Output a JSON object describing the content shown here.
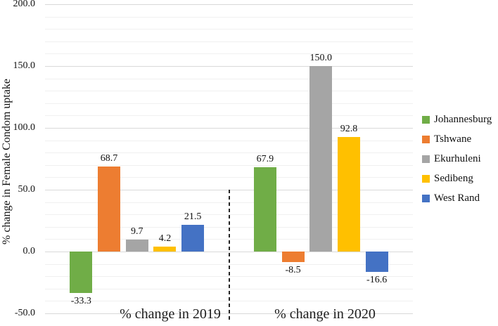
{
  "chart_data": {
    "type": "bar",
    "ylabel": "% change in Female Condom uptake",
    "groups": [
      "% change in 2019",
      "% change in 2020"
    ],
    "series": [
      {
        "name": "Johannesburg",
        "color": "#70AD47",
        "values": [
          -33.3,
          67.9
        ]
      },
      {
        "name": "Tshwane",
        "color": "#ED7D31",
        "values": [
          68.7,
          -8.5
        ]
      },
      {
        "name": "Ekurhuleni",
        "color": "#A5A5A5",
        "values": [
          9.7,
          150.0
        ]
      },
      {
        "name": "Sedibeng",
        "color": "#FFC000",
        "values": [
          4.2,
          92.8
        ]
      },
      {
        "name": "West Rand",
        "color": "#4472C4",
        "values": [
          21.5,
          -16.6
        ]
      }
    ],
    "ylim": [
      -50,
      200
    ],
    "ytick_labels": [
      "200.0",
      "150.0",
      "100.0",
      "50.0",
      "0.0",
      "-50.0"
    ],
    "value_label_format": "one-decimal",
    "grid": {
      "minor_step": 10,
      "major_step": 50,
      "minor_color": "#F0F0F0",
      "major_color": "#D9D9D9"
    },
    "separator": {
      "style": "dashed",
      "color": "#262626",
      "between": "groups"
    },
    "legend_position": "right"
  }
}
